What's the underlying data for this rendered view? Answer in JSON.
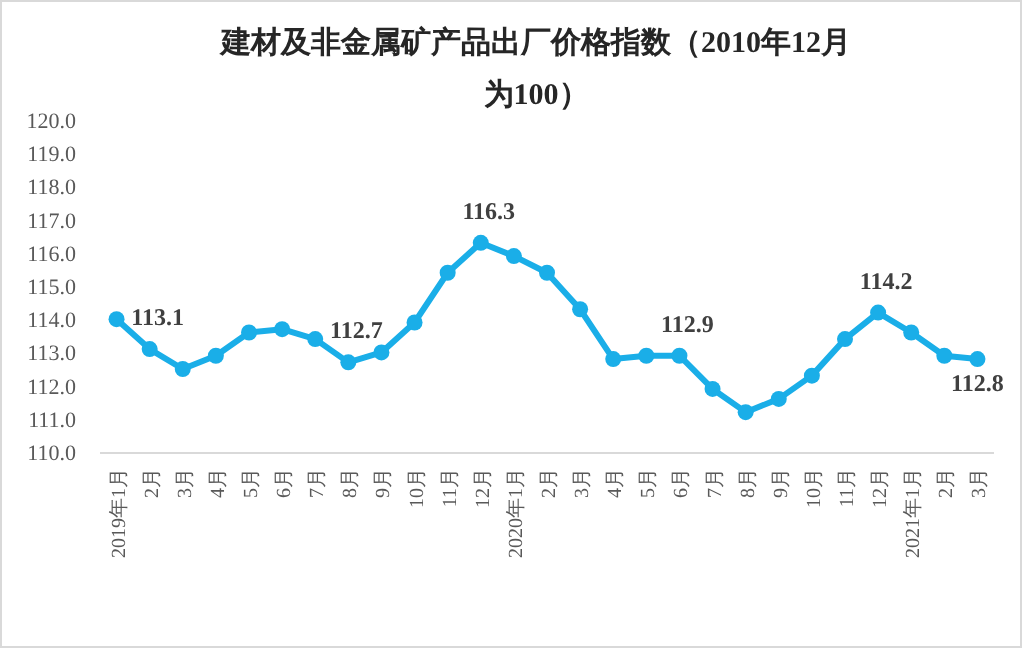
{
  "chart_data": {
    "type": "line",
    "title": "建材及非金属矿产品出厂价格指数（2010年12月为100）",
    "categories": [
      "2019年1月",
      "2月",
      "3月",
      "4月",
      "5月",
      "6月",
      "7月",
      "8月",
      "9月",
      "10月",
      "11月",
      "12月",
      "2020年1月",
      "2月",
      "3月",
      "4月",
      "5月",
      "6月",
      "7月",
      "8月",
      "9月",
      "10月",
      "11月",
      "12月",
      "2021年1月",
      "2月",
      "3月"
    ],
    "series": [
      {
        "color": "#1aaee8",
        "values": [
          114.0,
          113.1,
          112.5,
          112.9,
          113.6,
          113.7,
          113.4,
          112.7,
          113.0,
          113.9,
          115.4,
          116.3,
          115.9,
          115.4,
          114.3,
          112.8,
          112.9,
          112.9,
          111.9,
          111.2,
          111.6,
          112.3,
          113.4,
          114.2,
          113.6,
          112.9,
          112.8
        ],
        "value_labels": [
          null,
          "113.1",
          null,
          null,
          null,
          null,
          null,
          "112.7",
          null,
          null,
          null,
          "116.3",
          null,
          null,
          null,
          null,
          null,
          "112.9",
          null,
          null,
          null,
          null,
          null,
          "114.2",
          null,
          null,
          "112.8"
        ]
      }
    ],
    "ylim": [
      110,
      120
    ],
    "yticks": [
      {
        "value": 110,
        "label": "110.0"
      },
      {
        "value": 111,
        "label": "111.0"
      },
      {
        "value": 112,
        "label": "112.0"
      },
      {
        "value": 113,
        "label": "113.0"
      },
      {
        "value": 114,
        "label": "114.0"
      },
      {
        "value": 115,
        "label": "115.0"
      },
      {
        "value": 116,
        "label": "116.0"
      },
      {
        "value": 117,
        "label": "117.0"
      },
      {
        "value": 118,
        "label": "118.0"
      },
      {
        "value": 119,
        "label": "119.0"
      },
      {
        "value": 120,
        "label": "120.0"
      }
    ],
    "marker": "circle",
    "line_style": "solid",
    "grid": false
  }
}
